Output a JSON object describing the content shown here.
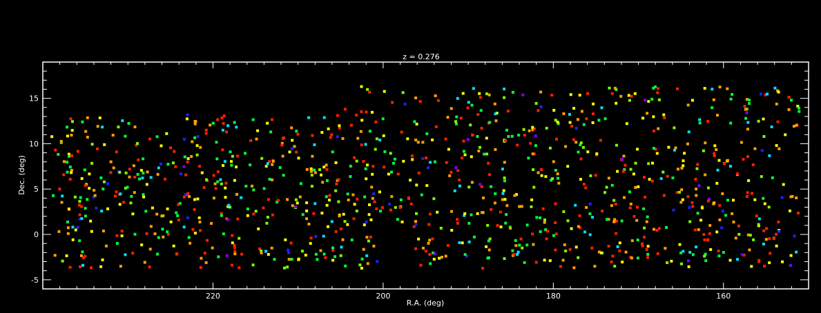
{
  "chart_data": {
    "type": "scatter",
    "title": "z = 0.276",
    "xlabel": "R.A. (deg)",
    "ylabel": "Dec. (deg)",
    "xlim": [
      240,
      150
    ],
    "ylim": [
      -6,
      19
    ],
    "x_ticks": [
      220,
      200,
      180,
      160
    ],
    "x_tick_labels": [
      "220",
      "200",
      "180",
      "160"
    ],
    "y_ticks": [
      -5,
      0,
      5,
      10,
      15
    ],
    "y_tick_labels": [
      "-5",
      "0",
      "5",
      "10",
      "15"
    ],
    "grid": false,
    "legend": "none",
    "background": "#000000",
    "foreground": "#ffffff",
    "marker": "square",
    "color_palette": [
      "#2020ff",
      "#00e0ff",
      "#00ff40",
      "#80ff00",
      "#ffff00",
      "#ffa000",
      "#ff2000",
      "#8000ff"
    ],
    "seed": 276,
    "point_count": 1150
  }
}
